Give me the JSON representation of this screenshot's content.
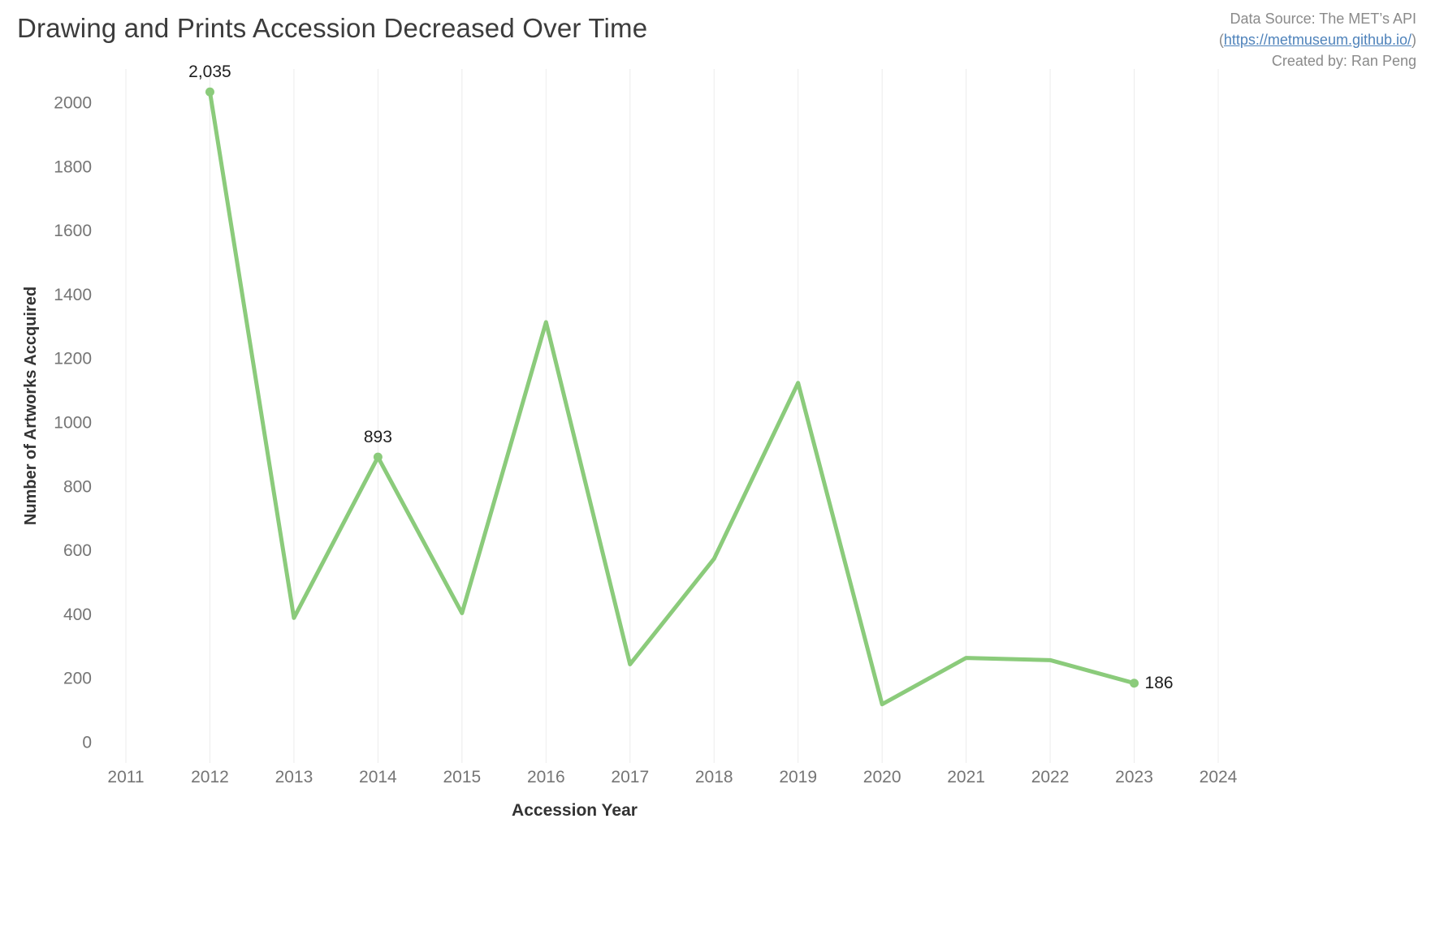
{
  "header": {
    "title": "Drawing and Prints Accession Decreased Over Time",
    "source_line": "Data Source: The MET’s API",
    "link_open": "(",
    "source_link": "https://metmuseum.github.io/",
    "link_close": ")",
    "created_by": "Created by: Ran Peng"
  },
  "chart_data": {
    "type": "line",
    "title": "Drawing and Prints Accession Decreased Over Time",
    "x": [
      2012,
      2013,
      2014,
      2015,
      2016,
      2017,
      2018,
      2019,
      2020,
      2021,
      2022,
      2023
    ],
    "values": [
      2035,
      390,
      893,
      405,
      1315,
      245,
      575,
      1125,
      120,
      265,
      258,
      186
    ],
    "markers": [
      {
        "year": 2012,
        "label": "2,035",
        "label_pos": "above"
      },
      {
        "year": 2014,
        "label": "893",
        "label_pos": "above"
      },
      {
        "year": 2023,
        "label": "186",
        "label_pos": "right"
      }
    ],
    "xlabel": "Accession Year",
    "ylabel": "Number of Artworks Accquired",
    "x_ticks": [
      2011,
      2012,
      2013,
      2014,
      2015,
      2016,
      2017,
      2018,
      2019,
      2020,
      2021,
      2022,
      2023,
      2024
    ],
    "y_ticks": [
      0,
      200,
      400,
      600,
      800,
      1000,
      1200,
      1400,
      1600,
      1800,
      2000
    ],
    "ylim": [
      0,
      2100
    ],
    "xlim": [
      2011,
      2024
    ],
    "grid": "vertical",
    "legend": "none",
    "line_color": "#8bcb7b",
    "label_color": "#1e1e1e",
    "tick_color": "#757575",
    "grid_color": "#ececec"
  }
}
